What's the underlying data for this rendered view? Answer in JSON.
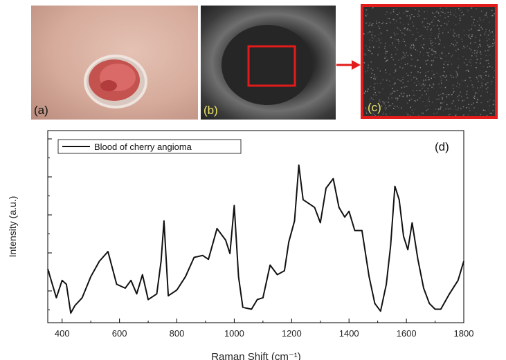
{
  "panels": {
    "a": {
      "label": "(a)"
    },
    "b": {
      "label": "(b)"
    },
    "c": {
      "label": "(c)"
    },
    "d": {
      "label": "(d)"
    }
  },
  "colors": {
    "highlight": "#e31b1b",
    "panel_label_light": "#e8e36a",
    "trace": "#111111"
  },
  "chart_data": {
    "type": "line",
    "title": "",
    "xlabel": "Raman Shift (cm⁻¹)",
    "ylabel": "Intensity (a.u.)",
    "xlim": [
      350,
      1800
    ],
    "ylim": [
      0,
      100
    ],
    "x_ticks": [
      400,
      600,
      800,
      1000,
      1200,
      1400,
      1600,
      1800
    ],
    "x_tick_labels": [
      "400",
      "600",
      "800",
      "1000",
      "1200",
      "1400",
      "1600",
      "1800"
    ],
    "grid": false,
    "legend_position": "top-left",
    "series": [
      {
        "name": "Blood of cherry angioma",
        "x": [
          350,
          380,
          400,
          415,
          430,
          445,
          470,
          500,
          530,
          560,
          590,
          620,
          640,
          660,
          680,
          700,
          730,
          745,
          755,
          770,
          800,
          830,
          860,
          890,
          910,
          940,
          970,
          985,
          1000,
          1015,
          1030,
          1060,
          1080,
          1100,
          1125,
          1150,
          1175,
          1190,
          1210,
          1225,
          1240,
          1260,
          1280,
          1300,
          1320,
          1345,
          1365,
          1385,
          1400,
          1420,
          1445,
          1470,
          1490,
          1510,
          1530,
          1545,
          1560,
          1575,
          1590,
          1605,
          1620,
          1640,
          1660,
          1680,
          1700,
          1720,
          1750,
          1780,
          1800
        ],
        "y": [
          28,
          13,
          22,
          20,
          5,
          9,
          13,
          24,
          32,
          37,
          20,
          18,
          22,
          15,
          25,
          12,
          15,
          32,
          53,
          14,
          17,
          24,
          34,
          35,
          33,
          49,
          43,
          36,
          61,
          24,
          8,
          7,
          12,
          13,
          30,
          25,
          27,
          42,
          53,
          82,
          64,
          62,
          60,
          52,
          70,
          75,
          60,
          55,
          58,
          48,
          48,
          24,
          10,
          6,
          20,
          40,
          71,
          64,
          45,
          38,
          52,
          33,
          18,
          10,
          7,
          7,
          15,
          22,
          32
        ]
      }
    ]
  }
}
